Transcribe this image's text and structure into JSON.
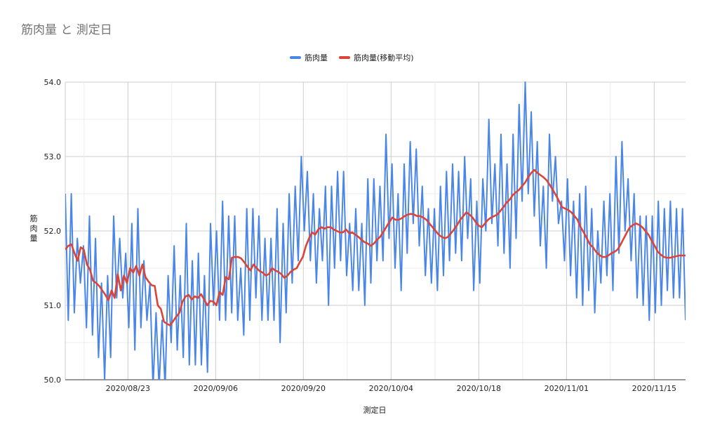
{
  "chart_data": {
    "type": "line",
    "title": "筋肉量 と 測定日",
    "xlabel": "測定日",
    "ylabel": "筋肉量",
    "ylim": [
      50.0,
      54.0
    ],
    "y_ticks": [
      "50.0",
      "51.0",
      "52.0",
      "53.0",
      "54.0"
    ],
    "x_range": [
      "2020-08-13",
      "2020-11-20"
    ],
    "x_ticks": [
      {
        "date": "2020-08-23",
        "label": "2020/08/23"
      },
      {
        "date": "2020-09-06",
        "label": "2020/09/06"
      },
      {
        "date": "2020-09-20",
        "label": "2020/09/20"
      },
      {
        "date": "2020-10-04",
        "label": "2020/10/04"
      },
      {
        "date": "2020-10-18",
        "label": "2020/10/18"
      },
      {
        "date": "2020-11-01",
        "label": "2020/11/01"
      },
      {
        "date": "2020-11-15",
        "label": "2020/11/15"
      }
    ],
    "grid": true,
    "legend_position": "top",
    "series": [
      {
        "name": "筋肉量",
        "color": "#4a86e8",
        "values": [
          52.5,
          50.8,
          52.5,
          50.9,
          51.9,
          51.3,
          51.8,
          50.7,
          52.2,
          50.6,
          51.9,
          50.3,
          51.3,
          50.0,
          51.4,
          50.3,
          52.2,
          51.1,
          51.9,
          51.1,
          51.7,
          50.7,
          52.1,
          50.4,
          52.3,
          50.7,
          51.6,
          50.8,
          51.3,
          49.9,
          50.9,
          49.9,
          50.8,
          49.9,
          51.4,
          50.5,
          51.8,
          50.4,
          51.4,
          50.3,
          52.1,
          50.2,
          51.6,
          50.2,
          51.7,
          50.2,
          51.4,
          50.1,
          52.1,
          51.0,
          52.0,
          50.8,
          52.4,
          50.8,
          52.2,
          50.9,
          52.2,
          50.8,
          51.5,
          50.6,
          52.3,
          50.8,
          52.3,
          51.1,
          52.2,
          50.8,
          51.9,
          50.8,
          51.9,
          50.8,
          52.3,
          50.5,
          52.1,
          50.9,
          52.5,
          51.3,
          52.6,
          51.6,
          53.0,
          52.0,
          52.8,
          51.6,
          52.5,
          51.3,
          52.3,
          51.6,
          52.6,
          51.0,
          52.6,
          51.5,
          52.8,
          51.6,
          52.8,
          51.4,
          52.1,
          51.2,
          52.3,
          51.2,
          52.1,
          51.0,
          52.7,
          51.3,
          52.7,
          51.6,
          52.6,
          51.6,
          53.3,
          51.9,
          52.9,
          51.5,
          52.5,
          51.2,
          52.9,
          51.7,
          53.2,
          52.1,
          53.1,
          51.8,
          52.6,
          51.4,
          52.3,
          51.3,
          52.3,
          51.2,
          52.6,
          51.4,
          52.8,
          51.6,
          52.9,
          51.7,
          52.8,
          51.6,
          53.0,
          51.9,
          52.7,
          51.2,
          52.4,
          51.3,
          52.7,
          52.0,
          53.5,
          52.1,
          52.9,
          51.8,
          53.3,
          51.7,
          52.9,
          51.5,
          53.3,
          51.9,
          53.7,
          52.4,
          54.0,
          52.5,
          53.6,
          52.2,
          53.2,
          51.8,
          52.6,
          51.5,
          53.3,
          52.4,
          53.0,
          52.1,
          52.4,
          51.6,
          52.7,
          51.4,
          52.4,
          51.1,
          52.5,
          51.0,
          52.6,
          51.2,
          52.3,
          50.9,
          52.0,
          51.3,
          52.4,
          51.4,
          52.5,
          51.2,
          53.0,
          51.7,
          53.2,
          52.0,
          52.7,
          51.6,
          52.5,
          51.1,
          52.2,
          51.0,
          52.2,
          50.8,
          52.2,
          50.9,
          52.4,
          51.0,
          52.3,
          51.2,
          52.4,
          51.1,
          52.3,
          51.1,
          52.3,
          50.8
        ]
      },
      {
        "name": "筋肉量(移動平均)",
        "color": "#db4437",
        "values": [
          51.75,
          51.8,
          51.82,
          51.7,
          51.6,
          51.78,
          51.75,
          51.55,
          51.48,
          51.33,
          51.3,
          51.26,
          51.2,
          51.14,
          51.07,
          51.2,
          51.1,
          51.42,
          51.2,
          51.4,
          51.3,
          51.5,
          51.44,
          51.53,
          51.4,
          51.55,
          51.38,
          51.32,
          51.27,
          51.26,
          51.0,
          50.95,
          50.78,
          50.75,
          50.73,
          50.79,
          50.85,
          50.9,
          51.05,
          51.12,
          51.14,
          51.08,
          51.12,
          51.1,
          51.15,
          51.08,
          51.0,
          51.06,
          51.05,
          51.0,
          51.18,
          51.14,
          51.38,
          51.35,
          51.64,
          51.65,
          51.65,
          51.63,
          51.58,
          51.52,
          51.47,
          51.55,
          51.5,
          51.46,
          51.44,
          51.4,
          51.42,
          51.5,
          51.47,
          51.45,
          51.42,
          51.37,
          51.4,
          51.45,
          51.48,
          51.5,
          51.58,
          51.65,
          51.8,
          51.9,
          51.98,
          51.95,
          52.02,
          52.05,
          52.03,
          52.05,
          52.05,
          52.02,
          52.0,
          51.98,
          51.98,
          52.02,
          51.97,
          51.98,
          51.95,
          51.92,
          51.88,
          51.85,
          51.83,
          51.8,
          51.83,
          51.88,
          51.92,
          51.98,
          52.05,
          52.12,
          52.18,
          52.15,
          52.15,
          52.17,
          52.2,
          52.22,
          52.23,
          52.22,
          52.2,
          52.2,
          52.18,
          52.15,
          52.1,
          52.05,
          52.0,
          51.95,
          51.92,
          51.9,
          51.92,
          51.97,
          52.02,
          52.08,
          52.15,
          52.2,
          52.25,
          52.22,
          52.18,
          52.12,
          52.07,
          52.05,
          52.1,
          52.15,
          52.18,
          52.2,
          52.22,
          52.27,
          52.32,
          52.38,
          52.42,
          52.48,
          52.52,
          52.55,
          52.6,
          52.65,
          52.72,
          52.78,
          52.82,
          52.78,
          52.75,
          52.72,
          52.68,
          52.62,
          52.55,
          52.48,
          52.4,
          52.32,
          52.3,
          52.28,
          52.25,
          52.2,
          52.15,
          52.05,
          51.98,
          51.9,
          51.82,
          51.78,
          51.72,
          51.68,
          51.65,
          51.65,
          51.67,
          51.7,
          51.72,
          51.75,
          51.82,
          51.9,
          51.98,
          52.05,
          52.08,
          52.1,
          52.08,
          52.05,
          52.0,
          51.95,
          51.87,
          51.8,
          51.72,
          51.68,
          51.65,
          51.64,
          51.64,
          51.65,
          51.66,
          51.67,
          51.67,
          51.67
        ]
      }
    ]
  }
}
